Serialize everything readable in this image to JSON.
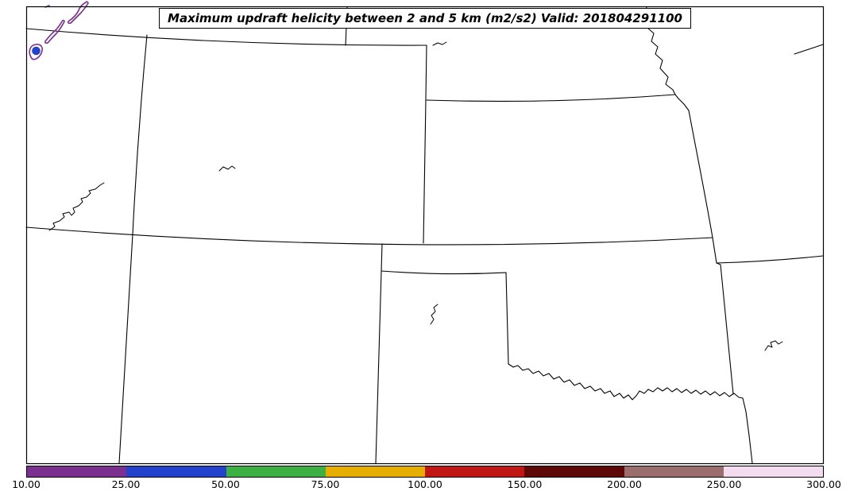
{
  "figure": {
    "title": "Maximum updraft helicity between 2 and 5 km (m2/s2) Valid: 201804291100",
    "background_color": "#ffffff"
  },
  "map": {
    "frame_color": "#000000",
    "state_border_color": "#000000",
    "lake_outline_color": "#000000",
    "swath_colors": {
      "purple": "#7a2e8e",
      "blue": "#2343cd"
    }
  },
  "colorbar": {
    "tick_labels": [
      "10.00",
      "25.00",
      "50.00",
      "75.00",
      "100.00",
      "150.00",
      "200.00",
      "250.00",
      "300.00"
    ],
    "levels": [
      10,
      25,
      50,
      75,
      100,
      150,
      200,
      250,
      300
    ],
    "segment_colors": [
      "#7b2f8e",
      "#2343cd",
      "#3cb043",
      "#e6af00",
      "#c01616",
      "#5e0808",
      "#9c6d6d",
      "#f3dcf0"
    ],
    "outline_color": "#000000"
  },
  "chart_data": {
    "type": "heatmap",
    "title": "Maximum updraft helicity between 2 and 5 km (m2/s2) Valid: 201804291100",
    "units": "m2/s2",
    "valid_time": "201804291100",
    "colorbar_levels": [
      10,
      25,
      50,
      75,
      100,
      150,
      200,
      250,
      300
    ],
    "colorbar_colors": [
      "#7b2f8e",
      "#2343cd",
      "#3cb043",
      "#e6af00",
      "#c01616",
      "#5e0808",
      "#9c6d6d",
      "#f3dcf0"
    ],
    "depicted": "Central US state-border map; small updraft-helicity swaths (10-50 m2/s2, purple/blue) in far northwest corner of domain"
  }
}
